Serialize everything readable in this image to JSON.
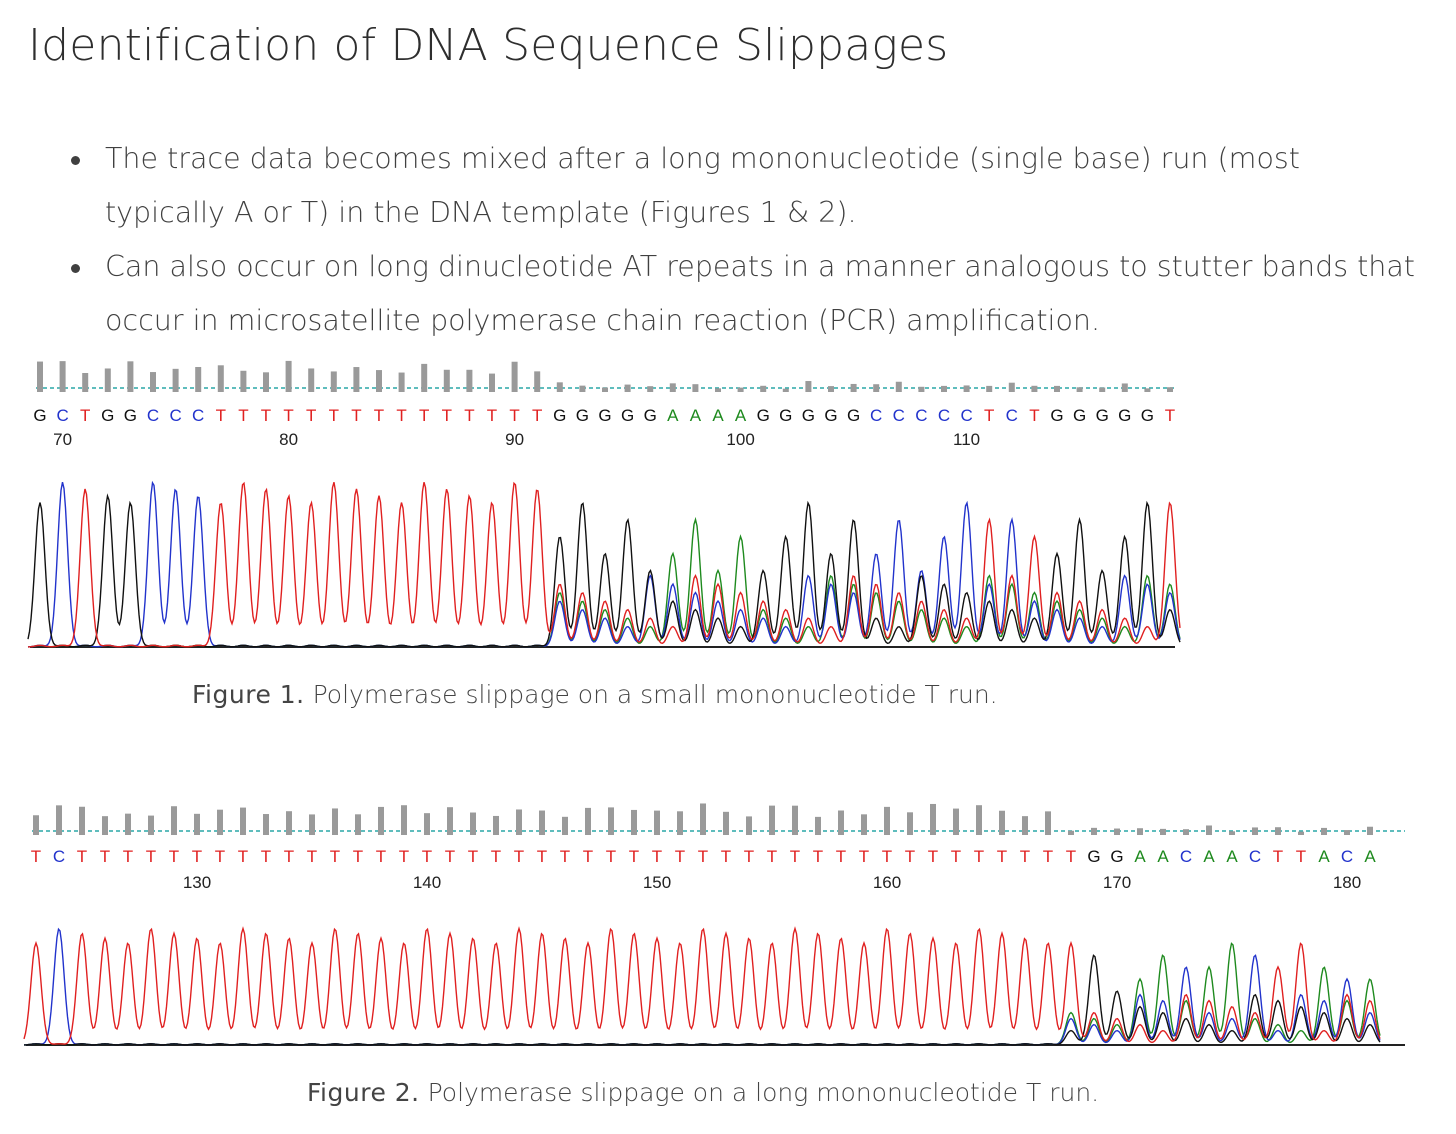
{
  "title": "Identification of DNA Sequence Slippages",
  "bullets": [
    "The trace data becomes mixed after a long mononucleotide (single base) run (most typically A or T) in the DNA template (Figures 1 & 2).",
    "Can also occur on long dinucleotide AT repeats in a manner analogous to stutter bands that occur in microsatellite polymerase chain reaction (PCR) amplification."
  ],
  "colors": {
    "A": "#1e8a1e",
    "C": "#2233cc",
    "G": "#111111",
    "T": "#e02020",
    "baseline": "#2aa7a7",
    "quality": "#9a9a9a"
  },
  "figures": [
    {
      "sequence": "GCTGGCCCTTTTTTTTTTTTTTTGGGGGAAAAGGGGGCCCCCTCTGGGGGT",
      "ticks": [
        "70",
        "80",
        "90",
        "100",
        "110"
      ],
      "caption_label": "Figure 1.",
      "caption_text": "Polymerase slippage on a small mononucleotide T run."
    },
    {
      "sequence": "TCTTTTTTTTTTTTTTTTTTTTTTTTTTTTTTTTTTTTTTTTTTTTGGAACAACTTACA",
      "ticks": [
        "130",
        "140",
        "150",
        "160",
        "170",
        "180"
      ],
      "caption_label": "Figure 2.",
      "caption_text": "Polymerase slippage on a long mononucleotide T run."
    }
  ]
}
